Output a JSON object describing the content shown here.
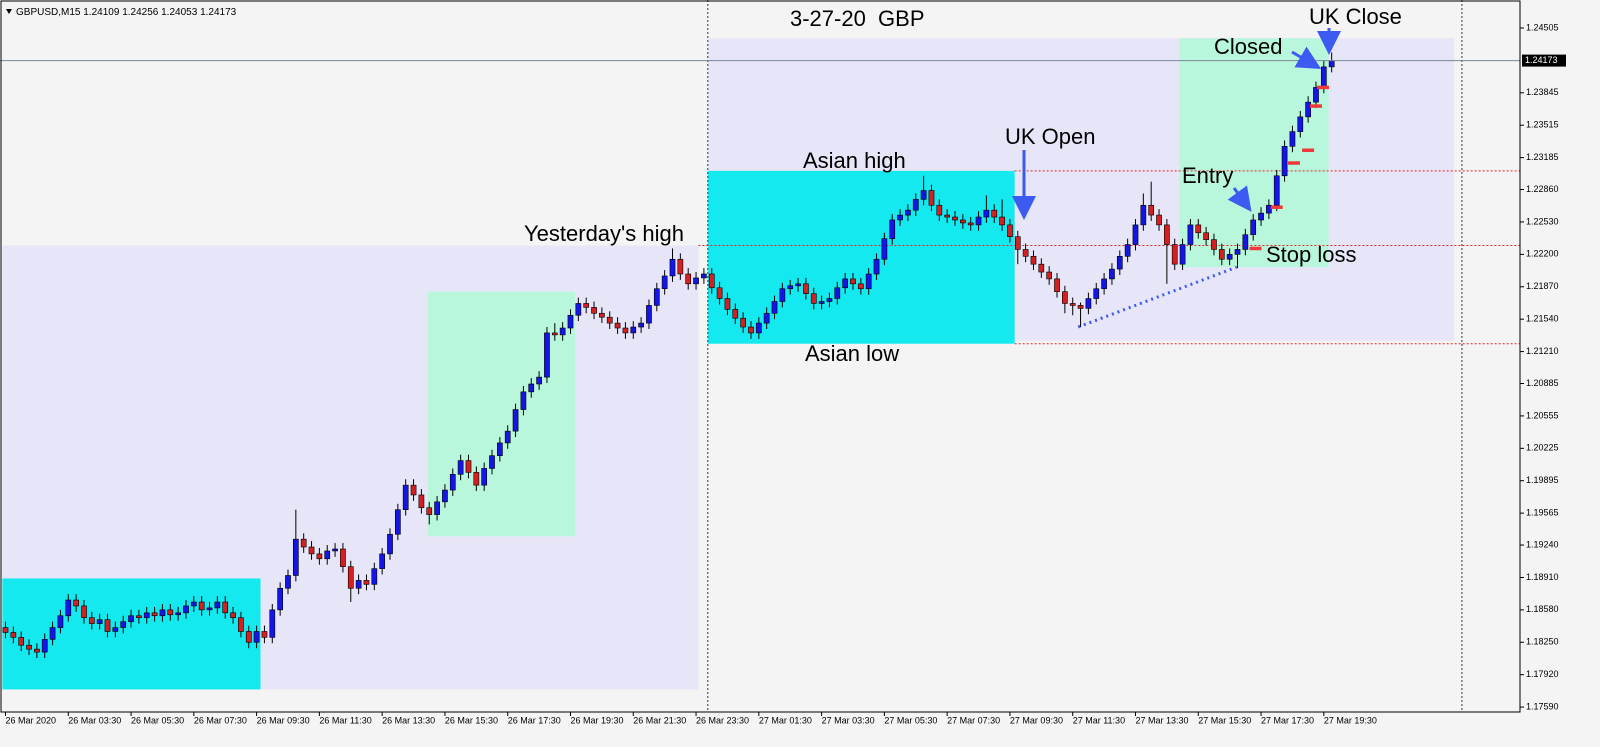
{
  "chart_data": {
    "type": "candlestick",
    "title": "3-27-20  GBP",
    "symbol": "GBPUSD,M15",
    "annotations": {
      "yesterday_high": "Yesterday's high",
      "asian_high": "Asian high",
      "asian_low": "Asian low",
      "uk_open": "UK Open",
      "uk_close": "UK Close",
      "closed": "Closed",
      "entry": "Entry",
      "stop_loss": "Stop loss"
    },
    "ylim": [
      1.1754,
      1.2479
    ],
    "xlim": [
      -0.7,
      193
    ],
    "yticks": [
      1.24505,
      1.23845,
      1.23515,
      1.23185,
      {
        "value": 1.2286,
        "label": "1.22860"
      },
      {
        "value": 1.2253,
        "label": "1.22530"
      },
      {
        "value": 1.222,
        "label": "1.22200"
      },
      {
        "value": 1.2187,
        "label": "1.21870"
      },
      {
        "value": 1.2154,
        "label": "1.21540"
      },
      {
        "value": 1.2121,
        "label": "1.21210"
      },
      1.20885,
      1.20555,
      1.20225,
      1.19895,
      1.19565,
      {
        "value": 1.1924,
        "label": "1.19240"
      },
      {
        "value": 1.1891,
        "label": "1.18910"
      },
      {
        "value": 1.1858,
        "label": "1.18580"
      },
      {
        "value": 1.1825,
        "label": "1.18250"
      },
      {
        "value": 1.1792,
        "label": "1.17920"
      },
      {
        "value": 1.1759,
        "label": "1.17590"
      }
    ],
    "xticks": [
      {
        "value": 0,
        "label": "26 Mar 2020"
      },
      {
        "value": 8,
        "label": "26 Mar 03:30"
      },
      {
        "value": 16,
        "label": "26 Mar 05:30"
      },
      {
        "value": 24,
        "label": "26 Mar 07:30"
      },
      {
        "value": 32,
        "label": "26 Mar 09:30"
      },
      {
        "value": 40,
        "label": "26 Mar 11:30"
      },
      {
        "value": 48,
        "label": "26 Mar 13:30"
      },
      {
        "value": 56,
        "label": "26 Mar 15:30"
      },
      {
        "value": 64,
        "label": "26 Mar 17:30"
      },
      {
        "value": 72,
        "label": "26 Mar 19:30"
      },
      {
        "value": 80,
        "label": "26 Mar 21:30"
      },
      {
        "value": 88,
        "label": "26 Mar 23:30"
      },
      {
        "value": 96,
        "label": "27 Mar 01:30"
      },
      {
        "value": 104,
        "label": "27 Mar 03:30"
      },
      {
        "value": 112,
        "label": "27 Mar 05:30"
      },
      {
        "value": 120,
        "label": "27 Mar 07:30"
      },
      {
        "value": 128,
        "label": "27 Mar 09:30"
      },
      {
        "value": 136,
        "label": "27 Mar 11:30"
      },
      {
        "value": 144,
        "label": "27 Mar 13:30"
      },
      {
        "value": 152,
        "label": "27 Mar 15:30"
      },
      {
        "value": 160,
        "label": "27 Mar 17:30"
      },
      {
        "value": 168,
        "label": "27 Mar 19:30"
      }
    ],
    "series": [
      {
        "name": "GBPUSD,M15",
        "up_color": "#1515e8",
        "down_color": "#d42020",
        "open": [
          1.184,
          1.1835,
          1.183,
          1.1822,
          1.1818,
          1.1815,
          1.1828,
          1.184,
          1.1852,
          1.1868,
          1.1862,
          1.185,
          1.1844,
          1.1848,
          1.1836,
          1.184,
          1.1846,
          1.1852,
          1.185,
          1.1855,
          1.1852,
          1.1858,
          1.1853,
          1.1855,
          1.1862,
          1.1866,
          1.1858,
          1.186,
          1.1866,
          1.1855,
          1.185,
          1.1836,
          1.1825,
          1.1836,
          1.183,
          1.1858,
          1.188,
          1.1893,
          1.193,
          1.1922,
          1.1915,
          1.191,
          1.1918,
          1.192,
          1.1902,
          1.188,
          1.1888,
          1.1884,
          1.19,
          1.1915,
          1.1935,
          1.196,
          1.1985,
          1.1975,
          1.1962,
          1.1955,
          1.1968,
          1.198,
          1.1996,
          1.201,
          1.1998,
          1.1985,
          1.2002,
          1.2015,
          1.2028,
          1.204,
          1.2062,
          1.208,
          1.2088,
          1.2095,
          1.214,
          1.2138,
          1.2145,
          1.2158,
          1.217,
          1.2166,
          1.216,
          1.2156,
          1.215,
          1.2145,
          1.214,
          1.2146,
          1.215,
          1.2168,
          1.2185,
          1.2198,
          1.2215,
          1.22,
          1.219,
          1.2196,
          1.22,
          1.2186,
          1.2175,
          1.2164,
          1.2155,
          1.2146,
          1.214,
          1.215,
          1.216,
          1.2172,
          1.2185,
          1.2188,
          1.219,
          1.218,
          1.217,
          1.2172,
          1.2175,
          1.2186,
          1.2195,
          1.219,
          1.2185,
          1.22,
          1.2215,
          1.2236,
          1.2255,
          1.226,
          1.2265,
          1.2276,
          1.2285,
          1.227,
          1.226,
          1.2258,
          1.2255,
          1.2252,
          1.225,
          1.2258,
          1.2265,
          1.2258,
          1.225,
          1.2238,
          1.2225,
          1.2218,
          1.221,
          1.2202,
          1.2195,
          1.2182,
          1.217,
          1.2168,
          1.2165,
          1.2175,
          1.2185,
          1.2195,
          1.2205,
          1.2218,
          1.223,
          1.225,
          1.227,
          1.226,
          1.225,
          1.223,
          1.221,
          1.223,
          1.225,
          1.2242,
          1.2235,
          1.2225,
          1.2215,
          1.222,
          1.2225,
          1.224,
          1.2255,
          1.2262,
          1.227,
          1.23,
          1.233,
          1.2345,
          1.236,
          1.2375,
          1.239,
          1.24109
        ],
        "high": [
          1.1846,
          1.1841,
          1.1836,
          1.1828,
          1.1824,
          1.1834,
          1.1846,
          1.1858,
          1.1874,
          1.1874,
          1.1868,
          1.1856,
          1.1854,
          1.1854,
          1.1846,
          1.1852,
          1.1858,
          1.1858,
          1.1861,
          1.1861,
          1.1864,
          1.1864,
          1.1861,
          1.1868,
          1.1872,
          1.1872,
          1.1866,
          1.1872,
          1.1872,
          1.1861,
          1.1856,
          1.1842,
          1.1842,
          1.1842,
          1.1864,
          1.1886,
          1.1899,
          1.196,
          1.1936,
          1.1928,
          1.1921,
          1.1924,
          1.1926,
          1.1926,
          1.1908,
          1.1894,
          1.1894,
          1.1906,
          1.1921,
          1.1941,
          1.1966,
          1.1991,
          1.1991,
          1.1981,
          1.1968,
          1.1974,
          1.1986,
          1.2002,
          1.2016,
          1.2016,
          1.2004,
          1.2008,
          1.2021,
          1.2034,
          1.2046,
          1.2068,
          1.2086,
          1.2094,
          1.2101,
          1.2146,
          1.215,
          1.2151,
          1.2164,
          1.2176,
          1.2176,
          1.2172,
          1.2166,
          1.2162,
          1.2156,
          1.2151,
          1.2152,
          1.2156,
          1.2174,
          1.2191,
          1.2204,
          1.2226,
          1.2221,
          1.2206,
          1.2202,
          1.2206,
          1.2206,
          1.2192,
          1.2181,
          1.217,
          1.2161,
          1.2152,
          1.2156,
          1.2166,
          1.2178,
          1.2191,
          1.2194,
          1.2196,
          1.2196,
          1.2186,
          1.2178,
          1.2181,
          1.2192,
          1.2201,
          1.2201,
          1.2196,
          1.2206,
          1.2221,
          1.2242,
          1.2261,
          1.2266,
          1.2271,
          1.2282,
          1.23,
          1.2291,
          1.2276,
          1.2266,
          1.2264,
          1.2261,
          1.2258,
          1.2264,
          1.228,
          1.2271,
          1.2276,
          1.2256,
          1.2244,
          1.2231,
          1.2224,
          1.2216,
          1.2208,
          1.2201,
          1.2188,
          1.2176,
          1.2171,
          1.2181,
          1.2191,
          1.2201,
          1.2211,
          1.2224,
          1.2236,
          1.2256,
          1.2282,
          1.2294,
          1.2266,
          1.2256,
          1.2236,
          1.2236,
          1.2256,
          1.2256,
          1.2248,
          1.2241,
          1.2231,
          1.2226,
          1.2231,
          1.2246,
          1.2261,
          1.2268,
          1.2276,
          1.2306,
          1.2336,
          1.2351,
          1.2366,
          1.2381,
          1.2396,
          1.2417,
          1.24256
        ],
        "low": [
          1.1829,
          1.1824,
          1.1816,
          1.1812,
          1.1809,
          1.1809,
          1.1822,
          1.1834,
          1.1846,
          1.1856,
          1.1844,
          1.1838,
          1.1838,
          1.183,
          1.183,
          1.1834,
          1.184,
          1.1844,
          1.1844,
          1.1846,
          1.1846,
          1.1847,
          1.1847,
          1.1849,
          1.1856,
          1.1852,
          1.1852,
          1.1854,
          1.1849,
          1.1844,
          1.183,
          1.1819,
          1.1819,
          1.1824,
          1.1824,
          1.1852,
          1.1874,
          1.1887,
          1.1916,
          1.1909,
          1.1904,
          1.1904,
          1.1912,
          1.1896,
          1.1866,
          1.1874,
          1.1878,
          1.1878,
          1.1894,
          1.1909,
          1.1929,
          1.1954,
          1.1969,
          1.1956,
          1.1945,
          1.1949,
          1.1962,
          1.1974,
          1.199,
          1.1992,
          1.1979,
          1.1979,
          1.1996,
          1.2009,
          1.2022,
          1.2034,
          1.2056,
          1.2074,
          1.2082,
          1.2089,
          1.2132,
          1.2132,
          1.2139,
          1.2152,
          1.216,
          1.2154,
          1.215,
          1.2144,
          1.2139,
          1.2134,
          1.2134,
          1.214,
          1.2144,
          1.2162,
          1.2179,
          1.2192,
          1.2194,
          1.2184,
          1.2184,
          1.219,
          1.218,
          1.2169,
          1.2158,
          1.2149,
          1.214,
          1.2134,
          1.2134,
          1.2144,
          1.2154,
          1.2166,
          1.2179,
          1.2182,
          1.2174,
          1.2164,
          1.2164,
          1.2166,
          1.2169,
          1.218,
          1.2184,
          1.2179,
          1.2179,
          1.2194,
          1.2209,
          1.223,
          1.2249,
          1.2254,
          1.2259,
          1.227,
          1.2264,
          1.2254,
          1.2252,
          1.2249,
          1.2246,
          1.2244,
          1.2244,
          1.2252,
          1.2252,
          1.2244,
          1.2232,
          1.221,
          1.2212,
          1.2204,
          1.2196,
          1.2189,
          1.2176,
          1.216,
          1.2158,
          1.2146,
          1.2159,
          1.2169,
          1.2179,
          1.2189,
          1.2199,
          1.2212,
          1.2224,
          1.2244,
          1.2254,
          1.2244,
          1.219,
          1.2204,
          1.2204,
          1.2224,
          1.2236,
          1.2229,
          1.2219,
          1.2209,
          1.2209,
          1.2206,
          1.2219,
          1.2234,
          1.2249,
          1.2256,
          1.2264,
          1.2294,
          1.2324,
          1.2339,
          1.2354,
          1.2369,
          1.2384,
          1.24053
        ],
        "close": [
          1.1835,
          1.183,
          1.1822,
          1.1818,
          1.1815,
          1.1828,
          1.184,
          1.1852,
          1.1868,
          1.1862,
          1.185,
          1.1844,
          1.1848,
          1.1836,
          1.184,
          1.1846,
          1.1852,
          1.185,
          1.1855,
          1.1852,
          1.1858,
          1.1853,
          1.1855,
          1.1862,
          1.1866,
          1.1858,
          1.186,
          1.1866,
          1.1855,
          1.185,
          1.1836,
          1.1825,
          1.1836,
          1.183,
          1.1858,
          1.188,
          1.1893,
          1.193,
          1.1922,
          1.1915,
          1.191,
          1.1918,
          1.192,
          1.1902,
          1.188,
          1.1888,
          1.1884,
          1.19,
          1.1915,
          1.1935,
          1.196,
          1.1985,
          1.1975,
          1.1962,
          1.1955,
          1.1968,
          1.198,
          1.1996,
          1.201,
          1.1998,
          1.1985,
          1.2002,
          1.2015,
          1.2028,
          1.204,
          1.2062,
          1.208,
          1.2088,
          1.2095,
          1.214,
          1.2138,
          1.2145,
          1.2158,
          1.217,
          1.2166,
          1.216,
          1.2156,
          1.215,
          1.2145,
          1.214,
          1.2146,
          1.215,
          1.2168,
          1.2185,
          1.2198,
          1.2215,
          1.22,
          1.219,
          1.2196,
          1.22,
          1.2186,
          1.2175,
          1.2164,
          1.2155,
          1.2146,
          1.214,
          1.215,
          1.216,
          1.2172,
          1.2185,
          1.2188,
          1.219,
          1.218,
          1.217,
          1.2172,
          1.2175,
          1.2186,
          1.2195,
          1.219,
          1.2185,
          1.22,
          1.2215,
          1.2236,
          1.2255,
          1.226,
          1.2265,
          1.2276,
          1.2285,
          1.227,
          1.226,
          1.2258,
          1.2255,
          1.2252,
          1.225,
          1.2258,
          1.2265,
          1.2258,
          1.225,
          1.2238,
          1.2225,
          1.2218,
          1.221,
          1.2202,
          1.2195,
          1.2182,
          1.217,
          1.2168,
          1.2165,
          1.2175,
          1.2185,
          1.2195,
          1.2205,
          1.2218,
          1.223,
          1.225,
          1.227,
          1.226,
          1.225,
          1.223,
          1.221,
          1.223,
          1.225,
          1.2242,
          1.2235,
          1.2225,
          1.2215,
          1.222,
          1.2225,
          1.224,
          1.2255,
          1.2262,
          1.227,
          1.23,
          1.233,
          1.2345,
          1.236,
          1.2375,
          1.239,
          1.24109,
          1.24173
        ]
      }
    ],
    "zones": [
      {
        "x": [
          -0.4,
          88.3
        ],
        "y": [
          1.1777,
          1.2229
        ],
        "color": "#e6e6f8"
      },
      {
        "x": [
          89.5,
          184.6
        ],
        "y": [
          1.2132,
          1.244
        ],
        "color": "#e6e6f8"
      },
      {
        "x": [
          -0.4,
          32.5
        ],
        "y": [
          1.1777,
          1.189
        ],
        "color": "#14e9ef"
      },
      {
        "x": [
          53.8,
          72.6
        ],
        "y": [
          1.1933,
          1.2182
        ],
        "color": "#b9f7dc"
      },
      {
        "x": [
          89.5,
          128.6
        ],
        "y": [
          1.2129,
          1.2305
        ],
        "color": "#14e9ef"
      },
      {
        "x": [
          149.6,
          168.6
        ],
        "y": [
          1.2207,
          1.244
        ],
        "color": "#b9f7dc"
      }
    ],
    "levels": [
      {
        "value": 1.2305,
        "start": 128.6
      },
      {
        "value": 1.2229,
        "start": 88.3
      },
      {
        "value": 1.2129,
        "start": 128.6
      }
    ],
    "level_color": "#e02828",
    "vlines": [
      89.5,
      185.6
    ],
    "trendline": {
      "x": [
        136.7,
        156.9
      ],
      "y": [
        1.2146,
        1.2207
      ],
      "color": "#3d5af1"
    },
    "stops": {
      "x": [
        159.3,
        162.0,
        164.2,
        166.0,
        167.0,
        167.9
      ],
      "values": [
        1.2226,
        1.2268,
        1.2313,
        1.2326,
        1.2371,
        1.239
      ],
      "color": "#f03a3a"
    },
    "price_line_color": "#7a869e"
  }
}
